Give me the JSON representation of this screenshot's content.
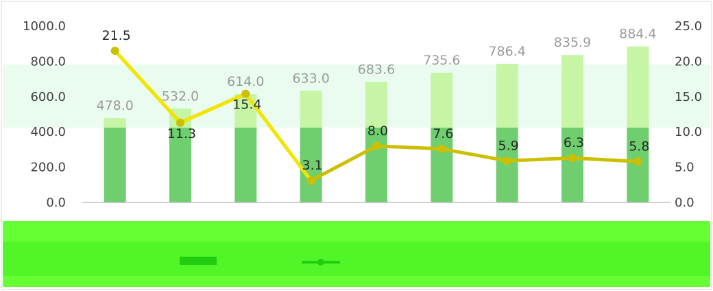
{
  "chart_data": {
    "type": "bar",
    "title": "",
    "categories": [
      "",
      "",
      "",
      "",
      "",
      "",
      "",
      "",
      ""
    ],
    "series": [
      {
        "kind": "bar",
        "axis": "left",
        "values": [
          478.0,
          532.0,
          614.0,
          633.0,
          683.6,
          735.6,
          786.4,
          835.9,
          884.4
        ],
        "labels": [
          "478.0",
          "532.0",
          "614.0",
          "633.0",
          "683.6",
          "735.6",
          "786.4",
          "835.9",
          "884.4"
        ]
      },
      {
        "kind": "line",
        "axis": "right",
        "values": [
          21.5,
          11.3,
          15.4,
          3.1,
          8.0,
          7.6,
          5.9,
          6.3,
          5.8
        ],
        "labels": [
          "21.5",
          "11.3",
          "15.4",
          "3.1",
          "8.0",
          "7.6",
          "5.9",
          "6.3",
          "5.8"
        ]
      }
    ],
    "y_left": {
      "min": 0,
      "max": 1000,
      "ticks": [
        "0.0",
        "200.0",
        "400.0",
        "600.0",
        "800.0",
        "1000.0"
      ]
    },
    "y_right": {
      "min": 0,
      "max": 25,
      "ticks": [
        "0.0",
        "5.0",
        "10.0",
        "15.0",
        "20.0",
        "25.0"
      ]
    },
    "grid": false,
    "legend_position": "bottom",
    "colors": {
      "bar_top": "#c6f5a6",
      "bar_bottom": "#6fcf6f",
      "line": "#ccbf00",
      "line_highlight": "#f2e600",
      "axis": "#bfbfbf",
      "band": "#e9fbef",
      "green_footer": "#66ff33",
      "green_dark": "#22cc11"
    }
  }
}
